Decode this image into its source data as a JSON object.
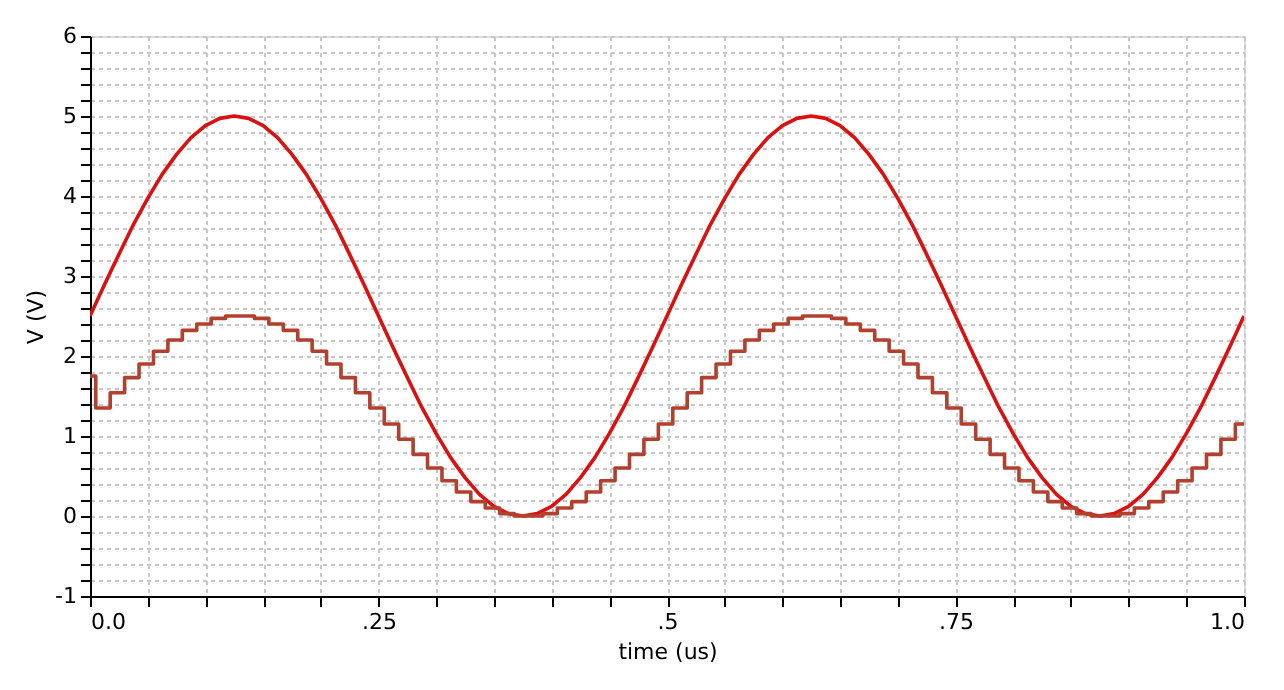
{
  "chart_data": {
    "type": "line",
    "xlabel": "time (us)",
    "ylabel": "V (V)",
    "xlim": [
      0,
      1.0
    ],
    "ylim": [
      -1,
      6
    ],
    "xticks": [
      {
        "value": 0,
        "label": "0.0"
      },
      {
        "value": 0.05,
        "label": null
      },
      {
        "value": 0.1,
        "label": null
      },
      {
        "value": 0.15,
        "label": null
      },
      {
        "value": 0.2,
        "label": null
      },
      {
        "value": 0.25,
        "label": ".25"
      },
      {
        "value": 0.3,
        "label": null
      },
      {
        "value": 0.35,
        "label": null
      },
      {
        "value": 0.4,
        "label": null
      },
      {
        "value": 0.45,
        "label": null
      },
      {
        "value": 0.5,
        "label": ".5"
      },
      {
        "value": 0.55,
        "label": null
      },
      {
        "value": 0.6,
        "label": null
      },
      {
        "value": 0.65,
        "label": null
      },
      {
        "value": 0.7,
        "label": null
      },
      {
        "value": 0.75,
        "label": ".75"
      },
      {
        "value": 0.8,
        "label": null
      },
      {
        "value": 0.85,
        "label": null
      },
      {
        "value": 0.9,
        "label": null
      },
      {
        "value": 0.95,
        "label": null
      },
      {
        "value": 1.0,
        "label": "1.0"
      }
    ],
    "yticks": [
      -1,
      {
        "value": -0.8,
        "label": null
      },
      {
        "value": -0.6,
        "label": null
      },
      {
        "value": -0.4,
        "label": null
      },
      {
        "value": -0.2,
        "label": null
      },
      0,
      {
        "value": 0.2,
        "label": null
      },
      {
        "value": 0.4,
        "label": null
      },
      {
        "value": 0.6,
        "label": null
      },
      {
        "value": 0.8,
        "label": null
      },
      1,
      {
        "value": 1.2,
        "label": null
      },
      {
        "value": 1.4,
        "label": null
      },
      {
        "value": 1.6,
        "label": null
      },
      {
        "value": 1.8,
        "label": null
      },
      2,
      {
        "value": 2.2,
        "label": null
      },
      {
        "value": 2.4,
        "label": null
      },
      {
        "value": 2.6,
        "label": null
      },
      {
        "value": 2.8,
        "label": null
      },
      3,
      {
        "value": 3.2,
        "label": null
      },
      {
        "value": 3.4,
        "label": null
      },
      {
        "value": 3.6,
        "label": null
      },
      {
        "value": 3.8,
        "label": null
      },
      4,
      {
        "value": 4.2,
        "label": null
      },
      {
        "value": 4.4,
        "label": null
      },
      {
        "value": 4.6,
        "label": null
      },
      {
        "value": 4.8,
        "label": null
      },
      5,
      {
        "value": 5.2,
        "label": null
      },
      {
        "value": 5.4,
        "label": null
      },
      {
        "value": 5.6,
        "label": null
      },
      {
        "value": 5.8,
        "label": null
      },
      6
    ],
    "grid": true,
    "legend": false,
    "marker": "none",
    "line_style": "solid",
    "series": [
      {
        "type": "line",
        "color": "#dd1010",
        "x": [
          0,
          0.0125,
          0.025,
          0.0375,
          0.05,
          0.0625,
          0.075,
          0.0875,
          0.1,
          0.1125,
          0.125,
          0.1375,
          0.15,
          0.1625,
          0.175,
          0.1875,
          0.2,
          0.2125,
          0.225,
          0.2375,
          0.25,
          0.2625,
          0.275,
          0.2875,
          0.3,
          0.3125,
          0.325,
          0.3375,
          0.35,
          0.3625,
          0.375,
          0.3875,
          0.4,
          0.4125,
          0.425,
          0.4375,
          0.45,
          0.4625,
          0.475,
          0.4875,
          0.5,
          0.5125,
          0.525,
          0.5375,
          0.55,
          0.5625,
          0.575,
          0.5875,
          0.6,
          0.6125,
          0.625,
          0.6375,
          0.65,
          0.6625,
          0.675,
          0.6875,
          0.7,
          0.7125,
          0.725,
          0.7375,
          0.75,
          0.7625,
          0.775,
          0.7875,
          0.8,
          0.8125,
          0.825,
          0.8375,
          0.85,
          0.8625,
          0.875,
          0.8875,
          0.9,
          0.9125,
          0.925,
          0.9375,
          0.95,
          0.9625,
          0.975,
          0.9875,
          1.0
        ],
        "values": [
          2.5,
          2.89,
          3.27,
          3.64,
          3.97,
          4.27,
          4.52,
          4.73,
          4.88,
          4.97,
          5,
          4.97,
          4.88,
          4.73,
          4.52,
          4.27,
          3.97,
          3.64,
          3.27,
          2.89,
          2.5,
          2.11,
          1.73,
          1.36,
          1.03,
          0.73,
          0.48,
          0.27,
          0.12,
          0.03,
          0,
          0.03,
          0.12,
          0.27,
          0.48,
          0.73,
          1.03,
          1.36,
          1.73,
          2.11,
          2.5,
          2.89,
          3.27,
          3.64,
          3.97,
          4.27,
          4.52,
          4.73,
          4.88,
          4.97,
          5,
          4.97,
          4.88,
          4.73,
          4.52,
          4.27,
          3.97,
          3.64,
          3.27,
          2.89,
          2.5,
          2.11,
          1.73,
          1.36,
          1.03,
          0.73,
          0.48,
          0.27,
          0.12,
          0.03,
          0,
          0.03,
          0.12,
          0.27,
          0.48,
          0.73,
          1.03,
          1.36,
          1.73,
          2.11,
          2.5
        ]
      },
      {
        "type": "step",
        "color": "#b2402e",
        "x": [
          0,
          0.005,
          0.0175,
          0.03,
          0.0425,
          0.055,
          0.0675,
          0.08,
          0.0925,
          0.105,
          0.1175,
          0.13,
          0.1425,
          0.155,
          0.1675,
          0.18,
          0.1925,
          0.205,
          0.2175,
          0.23,
          0.2425,
          0.255,
          0.2675,
          0.28,
          0.2925,
          0.305,
          0.3175,
          0.33,
          0.3425,
          0.355,
          0.3675,
          0.38,
          0.3925,
          0.405,
          0.4175,
          0.43,
          0.4425,
          0.455,
          0.4675,
          0.48,
          0.4925,
          0.505,
          0.5175,
          0.53,
          0.5425,
          0.555,
          0.5675,
          0.58,
          0.5925,
          0.605,
          0.6175,
          0.63,
          0.6425,
          0.655,
          0.6675,
          0.68,
          0.6925,
          0.705,
          0.7175,
          0.73,
          0.7425,
          0.755,
          0.7675,
          0.78,
          0.7925,
          0.805,
          0.8175,
          0.83,
          0.8425,
          0.855,
          0.8675,
          0.88,
          0.8925,
          0.905,
          0.9175,
          0.93,
          0.9425,
          0.955,
          0.9675,
          0.98,
          0.9925,
          1.0
        ],
        "values": [
          1.75,
          1.35,
          1.54,
          1.73,
          1.9,
          2.06,
          2.2,
          2.32,
          2.4,
          2.47,
          2.5,
          2.5,
          2.47,
          2.4,
          2.32,
          2.2,
          2.06,
          1.9,
          1.73,
          1.54,
          1.35,
          1.15,
          0.96,
          0.77,
          0.6,
          0.44,
          0.3,
          0.18,
          0.1,
          0.03,
          0,
          0,
          0.03,
          0.1,
          0.18,
          0.3,
          0.44,
          0.6,
          0.77,
          0.96,
          1.15,
          1.35,
          1.54,
          1.73,
          1.9,
          2.06,
          2.2,
          2.32,
          2.4,
          2.47,
          2.5,
          2.5,
          2.47,
          2.4,
          2.32,
          2.2,
          2.06,
          1.9,
          1.73,
          1.54,
          1.35,
          1.15,
          0.96,
          0.77,
          0.6,
          0.44,
          0.3,
          0.18,
          0.1,
          0.03,
          0,
          0,
          0.03,
          0.1,
          0.18,
          0.3,
          0.44,
          0.6,
          0.77,
          0.96,
          1.15,
          1.15
        ]
      }
    ]
  }
}
